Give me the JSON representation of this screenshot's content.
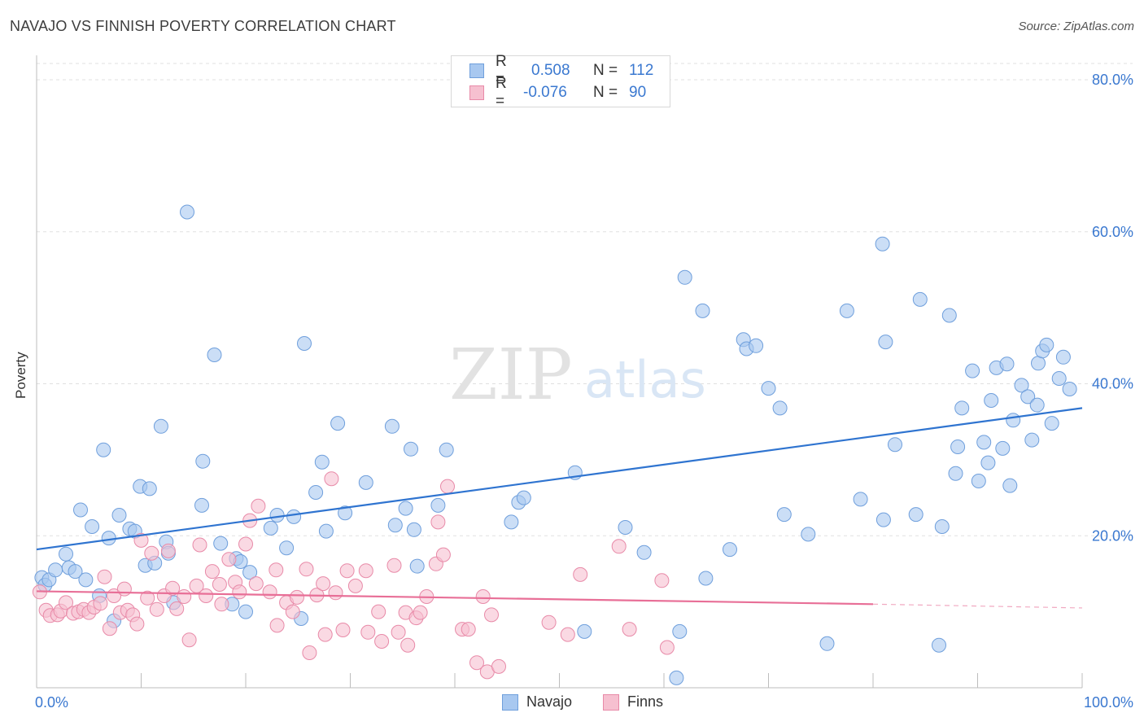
{
  "title": "NAVAJO VS FINNISH POVERTY CORRELATION CHART",
  "source": "Source: ZipAtlas.com",
  "watermark": {
    "part1": "ZIP",
    "part2": "atlas"
  },
  "legend": {
    "rows": [
      {
        "r_label": "R =",
        "r_value": "0.508",
        "n_label": "N =",
        "n_value": "112",
        "color": "#a8c8f0",
        "border": "#6f9fdc"
      },
      {
        "r_label": "R =",
        "r_value": "-0.076",
        "n_label": "N =",
        "n_value": "90",
        "color": "#f6c0d0",
        "border": "#e88aa8"
      }
    ]
  },
  "bottom_legend": [
    {
      "label": "Navajo",
      "color": "#a8c8f0",
      "border": "#6f9fdc"
    },
    {
      "label": "Finns",
      "color": "#f6c0d0",
      "border": "#e88aa8"
    }
  ],
  "chart_data": {
    "type": "scatter",
    "title": "NAVAJO VS FINNISH POVERTY CORRELATION CHART",
    "xlabel": "",
    "ylabel": "Poverty",
    "xlim": [
      0,
      100
    ],
    "ylim": [
      0,
      80
    ],
    "x_tick_labels": [
      "0.0%",
      "100.0%"
    ],
    "y_tick_labels": [
      "20.0%",
      "40.0%",
      "60.0%",
      "80.0%"
    ],
    "y_ticks": [
      20,
      40,
      60,
      80
    ],
    "grid": true,
    "legend_position": "top-center",
    "series": [
      {
        "name": "Navajo",
        "color": "#a8c8f0",
        "stroke": "#6f9fdc",
        "trend": {
          "x": [
            0,
            100
          ],
          "y": [
            18.2,
            36.8
          ],
          "color": "#2f74d0"
        },
        "points": [
          [
            0.5,
            14.5
          ],
          [
            0.8,
            13.5
          ],
          [
            1.2,
            14.2
          ],
          [
            1.8,
            15.5
          ],
          [
            2.8,
            17.6
          ],
          [
            3.1,
            15.8
          ],
          [
            3.7,
            15.3
          ],
          [
            4.2,
            23.4
          ],
          [
            4.7,
            14.2
          ],
          [
            5.3,
            21.2
          ],
          [
            6.0,
            12.1
          ],
          [
            6.4,
            31.3
          ],
          [
            6.9,
            19.7
          ],
          [
            7.4,
            8.8
          ],
          [
            7.9,
            22.7
          ],
          [
            8.9,
            20.9
          ],
          [
            9.4,
            20.6
          ],
          [
            9.9,
            26.5
          ],
          [
            10.4,
            16.1
          ],
          [
            10.8,
            26.2
          ],
          [
            11.3,
            16.4
          ],
          [
            11.9,
            34.4
          ],
          [
            12.4,
            19.2
          ],
          [
            12.6,
            17.7
          ],
          [
            13.1,
            11.2
          ],
          [
            14.4,
            62.6
          ],
          [
            15.8,
            24.0
          ],
          [
            15.9,
            29.8
          ],
          [
            17.0,
            43.8
          ],
          [
            17.6,
            19.0
          ],
          [
            18.7,
            11.0
          ],
          [
            19.1,
            17.0
          ],
          [
            19.5,
            16.6
          ],
          [
            20.0,
            10.0
          ],
          [
            20.4,
            15.2
          ],
          [
            22.4,
            21.0
          ],
          [
            23.0,
            22.7
          ],
          [
            23.9,
            18.4
          ],
          [
            24.6,
            22.5
          ],
          [
            25.3,
            9.1
          ],
          [
            25.6,
            45.3
          ],
          [
            26.7,
            25.7
          ],
          [
            27.3,
            29.7
          ],
          [
            27.7,
            20.6
          ],
          [
            28.8,
            34.8
          ],
          [
            29.5,
            23.0
          ],
          [
            31.5,
            27.0
          ],
          [
            34.0,
            34.4
          ],
          [
            34.3,
            21.4
          ],
          [
            35.3,
            23.6
          ],
          [
            35.8,
            31.4
          ],
          [
            36.1,
            20.8
          ],
          [
            36.4,
            16.0
          ],
          [
            38.4,
            24.0
          ],
          [
            39.2,
            31.3
          ],
          [
            45.4,
            21.8
          ],
          [
            46.1,
            24.4
          ],
          [
            46.6,
            25.0
          ],
          [
            51.5,
            28.3
          ],
          [
            52.4,
            7.4
          ],
          [
            56.3,
            21.1
          ],
          [
            58.1,
            17.8
          ],
          [
            61.2,
            1.3
          ],
          [
            61.5,
            7.4
          ],
          [
            62.0,
            54.0
          ],
          [
            63.7,
            49.6
          ],
          [
            64.0,
            14.4
          ],
          [
            66.3,
            18.2
          ],
          [
            67.6,
            45.8
          ],
          [
            67.9,
            44.6
          ],
          [
            68.8,
            45.0
          ],
          [
            70.0,
            39.4
          ],
          [
            71.1,
            36.8
          ],
          [
            71.5,
            22.8
          ],
          [
            73.8,
            20.2
          ],
          [
            75.6,
            5.8
          ],
          [
            77.5,
            49.6
          ],
          [
            78.8,
            24.8
          ],
          [
            80.9,
            58.4
          ],
          [
            81.0,
            22.1
          ],
          [
            81.2,
            45.5
          ],
          [
            82.1,
            32.0
          ],
          [
            84.1,
            22.8
          ],
          [
            84.5,
            51.1
          ],
          [
            86.3,
            5.6
          ],
          [
            86.6,
            21.2
          ],
          [
            87.3,
            49.0
          ],
          [
            87.9,
            28.2
          ],
          [
            88.1,
            31.7
          ],
          [
            88.5,
            36.8
          ],
          [
            89.5,
            41.7
          ],
          [
            90.1,
            27.2
          ],
          [
            90.6,
            32.3
          ],
          [
            91.0,
            29.6
          ],
          [
            91.3,
            37.8
          ],
          [
            91.8,
            42.1
          ],
          [
            92.4,
            31.5
          ],
          [
            92.8,
            42.6
          ],
          [
            93.1,
            26.6
          ],
          [
            93.4,
            35.2
          ],
          [
            94.2,
            39.8
          ],
          [
            94.8,
            38.3
          ],
          [
            95.2,
            32.6
          ],
          [
            95.7,
            37.2
          ],
          [
            95.8,
            42.7
          ],
          [
            96.2,
            44.3
          ],
          [
            96.6,
            45.1
          ],
          [
            97.1,
            34.8
          ],
          [
            97.8,
            40.7
          ],
          [
            98.2,
            43.5
          ],
          [
            98.8,
            39.3
          ]
        ]
      },
      {
        "name": "Finns",
        "color": "#f6c0d0",
        "stroke": "#e88aa8",
        "trend": {
          "x": [
            0,
            80
          ],
          "y": [
            12.7,
            11.0
          ],
          "dash_x": [
            80,
            100
          ],
          "dash_y": [
            11.0,
            10.5
          ],
          "color": "#e86f97"
        },
        "points": [
          [
            0.3,
            12.6
          ],
          [
            0.9,
            10.2
          ],
          [
            1.3,
            9.5
          ],
          [
            2.0,
            9.6
          ],
          [
            2.3,
            10.1
          ],
          [
            2.8,
            11.2
          ],
          [
            3.5,
            9.8
          ],
          [
            4.0,
            10.0
          ],
          [
            4.5,
            10.3
          ],
          [
            5.0,
            9.9
          ],
          [
            5.5,
            10.6
          ],
          [
            6.1,
            11.1
          ],
          [
            6.5,
            14.6
          ],
          [
            7.0,
            7.8
          ],
          [
            7.4,
            12.1
          ],
          [
            8.0,
            9.9
          ],
          [
            8.4,
            13.0
          ],
          [
            8.7,
            10.2
          ],
          [
            9.2,
            9.6
          ],
          [
            9.6,
            8.4
          ],
          [
            10.0,
            19.4
          ],
          [
            10.6,
            11.8
          ],
          [
            11.0,
            17.7
          ],
          [
            11.5,
            10.3
          ],
          [
            12.2,
            12.1
          ],
          [
            12.6,
            18.0
          ],
          [
            13.0,
            13.1
          ],
          [
            13.4,
            10.4
          ],
          [
            14.1,
            12.0
          ],
          [
            14.6,
            6.3
          ],
          [
            15.3,
            13.4
          ],
          [
            15.6,
            18.8
          ],
          [
            16.2,
            12.1
          ],
          [
            16.8,
            15.3
          ],
          [
            17.5,
            13.6
          ],
          [
            17.7,
            11.0
          ],
          [
            18.4,
            16.9
          ],
          [
            19.0,
            13.9
          ],
          [
            19.4,
            12.6
          ],
          [
            20.0,
            18.9
          ],
          [
            20.4,
            22.0
          ],
          [
            21.0,
            13.7
          ],
          [
            21.2,
            23.9
          ],
          [
            22.3,
            12.6
          ],
          [
            22.9,
            15.5
          ],
          [
            23.0,
            8.2
          ],
          [
            23.9,
            11.2
          ],
          [
            24.5,
            10.0
          ],
          [
            24.9,
            11.9
          ],
          [
            25.8,
            15.6
          ],
          [
            26.1,
            4.6
          ],
          [
            26.8,
            12.2
          ],
          [
            27.4,
            13.7
          ],
          [
            27.6,
            7.0
          ],
          [
            28.2,
            27.5
          ],
          [
            28.6,
            12.5
          ],
          [
            29.3,
            7.6
          ],
          [
            29.7,
            15.4
          ],
          [
            30.5,
            13.4
          ],
          [
            31.5,
            15.4
          ],
          [
            31.7,
            7.3
          ],
          [
            32.7,
            10.0
          ],
          [
            33.0,
            6.1
          ],
          [
            34.2,
            16.1
          ],
          [
            34.6,
            7.3
          ],
          [
            35.3,
            9.9
          ],
          [
            35.5,
            5.6
          ],
          [
            36.3,
            9.2
          ],
          [
            36.7,
            9.9
          ],
          [
            37.3,
            12.0
          ],
          [
            38.2,
            16.3
          ],
          [
            38.4,
            21.8
          ],
          [
            38.9,
            17.5
          ],
          [
            39.3,
            26.5
          ],
          [
            40.7,
            7.7
          ],
          [
            41.3,
            7.7
          ],
          [
            42.1,
            3.3
          ],
          [
            42.7,
            12.0
          ],
          [
            43.1,
            2.1
          ],
          [
            43.5,
            9.6
          ],
          [
            44.2,
            2.8
          ],
          [
            49.0,
            8.6
          ],
          [
            50.8,
            7.0
          ],
          [
            52.0,
            14.9
          ],
          [
            55.7,
            18.6
          ],
          [
            56.7,
            7.7
          ],
          [
            59.8,
            14.1
          ],
          [
            60.3,
            5.3
          ]
        ]
      }
    ]
  }
}
